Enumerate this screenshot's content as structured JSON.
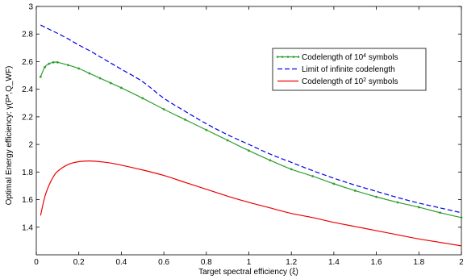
{
  "chart_data": {
    "type": "line",
    "title": "",
    "xlabel": "Target spectral efficiency (ξ)",
    "ylabel": "Optimal Energy efficiency: γ(P*,Q_WF)",
    "xlim": [
      0,
      2
    ],
    "ylim": [
      1.2,
      3
    ],
    "xticks": [
      "0",
      "0.2",
      "0.4",
      "0.6",
      "0.8",
      "1",
      "1.2",
      "1.4",
      "1.6",
      "1.8",
      "2"
    ],
    "yticks": [
      "1.4",
      "1.6",
      "1.8",
      "2",
      "2.2",
      "2.4",
      "2.6",
      "2.8",
      "3"
    ],
    "grid": false,
    "legend_position": "top-right",
    "x": [
      0.02,
      0.04,
      0.06,
      0.08,
      0.1,
      0.15,
      0.2,
      0.25,
      0.3,
      0.35,
      0.4,
      0.5,
      0.6,
      0.7,
      0.8,
      0.9,
      1.0,
      1.1,
      1.2,
      1.3,
      1.4,
      1.5,
      1.6,
      1.7,
      1.8,
      1.9,
      2.0
    ],
    "series": [
      {
        "name": "Codelength of 10^4 symbols",
        "color": "#2e9e2e",
        "style": "solid-markers",
        "values": [
          2.49,
          2.56,
          2.585,
          2.595,
          2.595,
          2.575,
          2.55,
          2.515,
          2.48,
          2.445,
          2.41,
          2.335,
          2.255,
          2.18,
          2.105,
          2.03,
          1.955,
          1.885,
          1.82,
          1.77,
          1.715,
          1.665,
          1.62,
          1.58,
          1.545,
          1.505,
          1.47
        ]
      },
      {
        "name": "Limit of infinite codelength",
        "color": "#0000ee",
        "style": "dashed",
        "values": [
          2.865,
          2.85,
          2.835,
          2.82,
          2.805,
          2.765,
          2.72,
          2.68,
          2.635,
          2.59,
          2.545,
          2.455,
          2.335,
          2.24,
          2.15,
          2.07,
          2.0,
          1.93,
          1.87,
          1.81,
          1.755,
          1.705,
          1.66,
          1.615,
          1.575,
          1.54,
          1.505
        ]
      },
      {
        "name": "Codelength of 10^2 symbols",
        "color": "#ee0000",
        "style": "solid",
        "values": [
          1.485,
          1.62,
          1.705,
          1.765,
          1.805,
          1.855,
          1.875,
          1.88,
          1.875,
          1.865,
          1.85,
          1.815,
          1.775,
          1.725,
          1.675,
          1.625,
          1.58,
          1.54,
          1.5,
          1.47,
          1.435,
          1.405,
          1.375,
          1.345,
          1.315,
          1.29,
          1.265
        ]
      }
    ]
  },
  "legend": {
    "entries": [
      {
        "prefix": "Codelength of 10",
        "sup": "4",
        "suffix": " symbols"
      },
      {
        "prefix": "Limit of infinite codelength",
        "sup": "",
        "suffix": ""
      },
      {
        "prefix": "Codelength of 10",
        "sup": "2",
        "suffix": " symbols"
      }
    ]
  }
}
